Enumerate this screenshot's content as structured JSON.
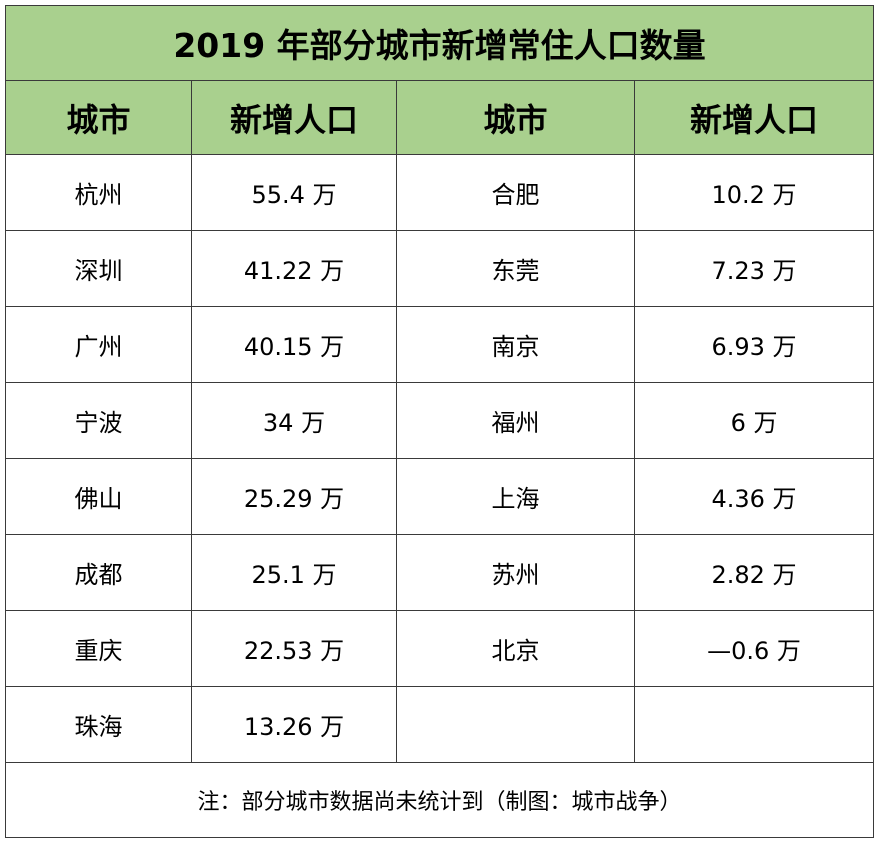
{
  "title": "2019 年部分城市新增常住人口数量",
  "headers": [
    "城市",
    "新增人口",
    "城市",
    "新增人口"
  ],
  "rows": [
    [
      "杭州",
      "55.4 万",
      "合肥",
      "10.2 万"
    ],
    [
      "深圳",
      "41.22 万",
      "东莞",
      "7.23 万"
    ],
    [
      "广州",
      "40.15 万",
      "南京",
      "6.93 万"
    ],
    [
      "宁波",
      "34 万",
      "福州",
      "6 万"
    ],
    [
      "佛山",
      "25.29 万",
      "上海",
      "4.36 万"
    ],
    [
      "成都",
      "25.1 万",
      "苏州",
      "2.82 万"
    ],
    [
      "重庆",
      "22.53 万",
      "北京",
      "—0.6 万"
    ],
    [
      "珠海",
      "13.26 万",
      "",
      ""
    ]
  ],
  "note": "注：部分城市数据尚未统计到（制图：城市战争）",
  "colors": {
    "header_bg": "#a9d08e",
    "border": "#3a3a3a"
  }
}
